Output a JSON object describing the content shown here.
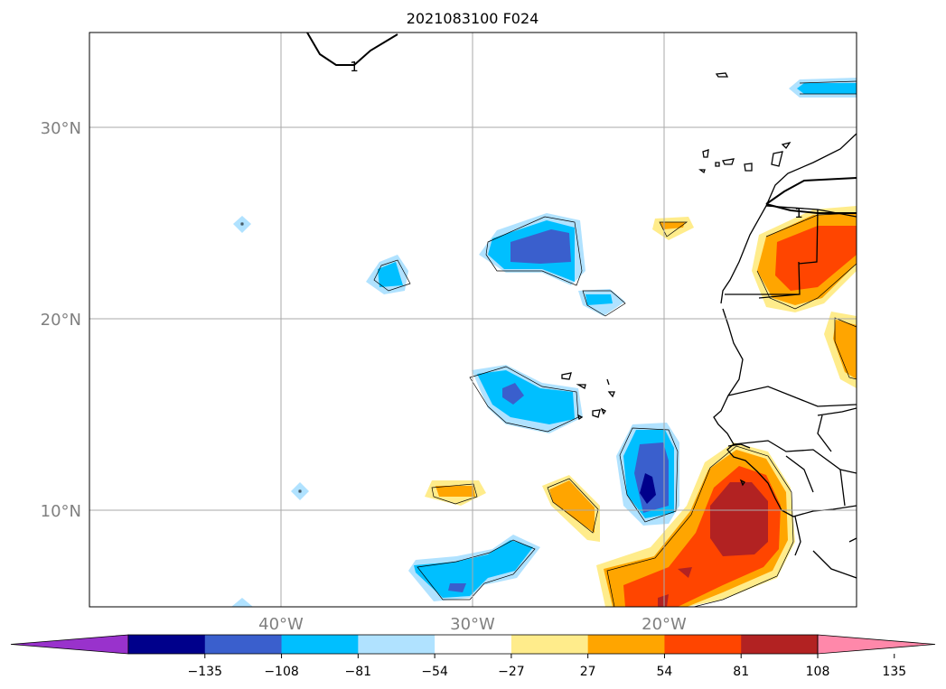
{
  "title": "2021083100 F024",
  "map": {
    "lat_labels": [
      "30°N",
      "20°N",
      "10°N"
    ],
    "lon_labels": [
      "40°W",
      "30°W",
      "20°W"
    ],
    "contour_labels": [
      "1",
      "1"
    ]
  },
  "colorbar": {
    "ticks": [
      "−135",
      "−108",
      "−81",
      "−54",
      "−27",
      "27",
      "54",
      "81",
      "108",
      "135"
    ],
    "bins": [
      "#9932cc",
      "#00008b",
      "#3a5fcd",
      "#00bfff",
      "#b0e2ff",
      "#ffffff",
      "#ffec8b",
      "#ffa500",
      "#ff4500",
      "#b22222",
      "#ff88aa"
    ]
  },
  "colors": {
    "light_blue": "#b0e2ff",
    "deep_sky_blue": "#00bfff",
    "royal_blue": "#3a5fcd",
    "navy": "#00008b",
    "light_yellow": "#ffec8b",
    "orange": "#ffa500",
    "orange_red": "#ff4500",
    "firebrick": "#b22222"
  }
}
